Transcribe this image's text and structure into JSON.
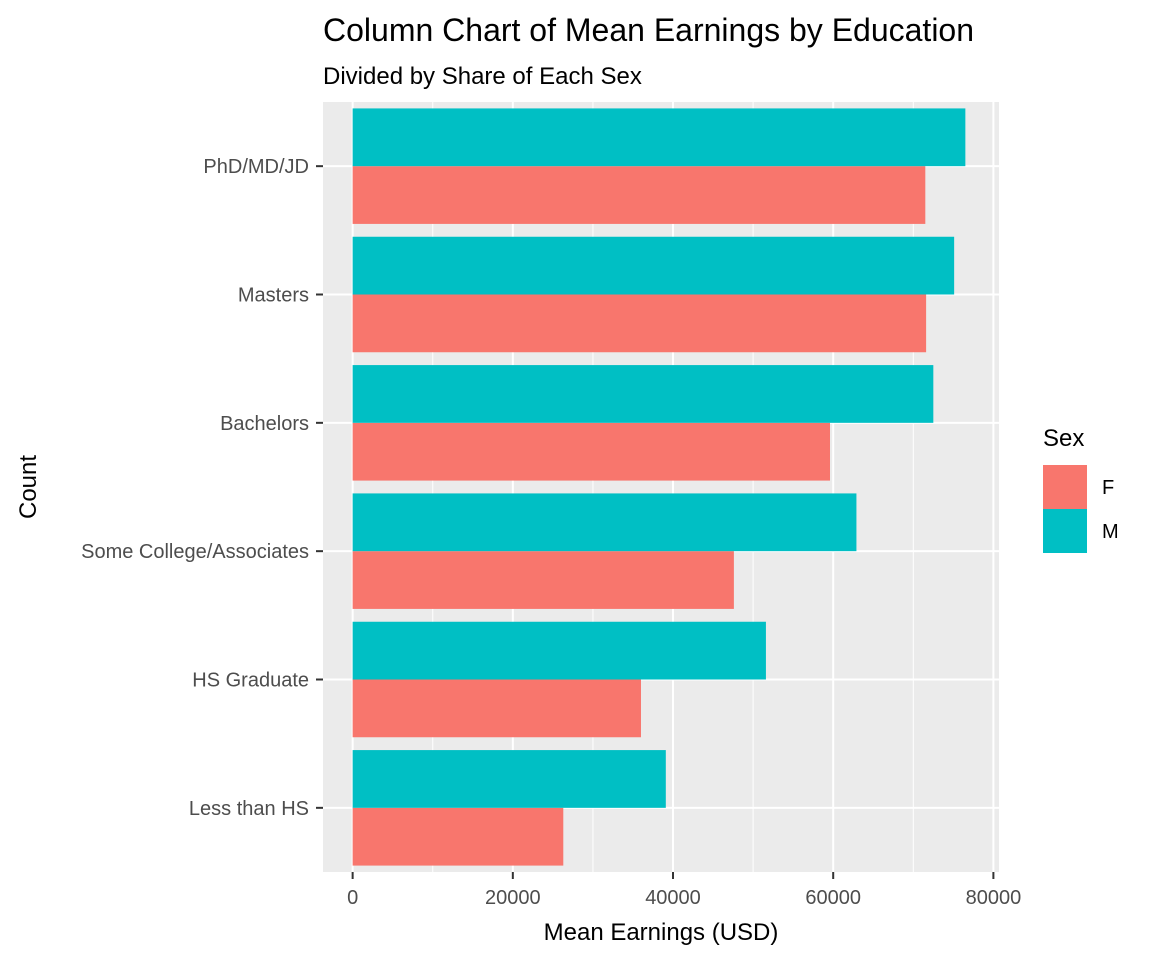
{
  "chart_data": {
    "type": "bar",
    "orientation": "horizontal",
    "title": "Column Chart of Mean Earnings by Education",
    "subtitle": "Divided by Share of Each Sex",
    "xlabel": "Mean Earnings (USD)",
    "ylabel": "Count",
    "categories": [
      "Less than HS",
      "HS Graduate",
      "Some College/Associates",
      "Bachelors",
      "Masters",
      "PhD/MD/JD"
    ],
    "series": [
      {
        "name": "F",
        "color": "#F8766D",
        "values": [
          26300,
          36000,
          47600,
          59600,
          71600,
          71500
        ]
      },
      {
        "name": "M",
        "color": "#00BFC4",
        "values": [
          39100,
          51600,
          62900,
          72500,
          75100,
          76500
        ]
      }
    ],
    "xlim": [
      -3700,
      80700
    ],
    "xticks": [
      0,
      20000,
      40000,
      60000,
      80000
    ],
    "xtick_labels": [
      "0",
      "20000",
      "40000",
      "60000",
      "80000"
    ],
    "grid": true,
    "legend": {
      "title": "Sex",
      "position": "right"
    }
  }
}
